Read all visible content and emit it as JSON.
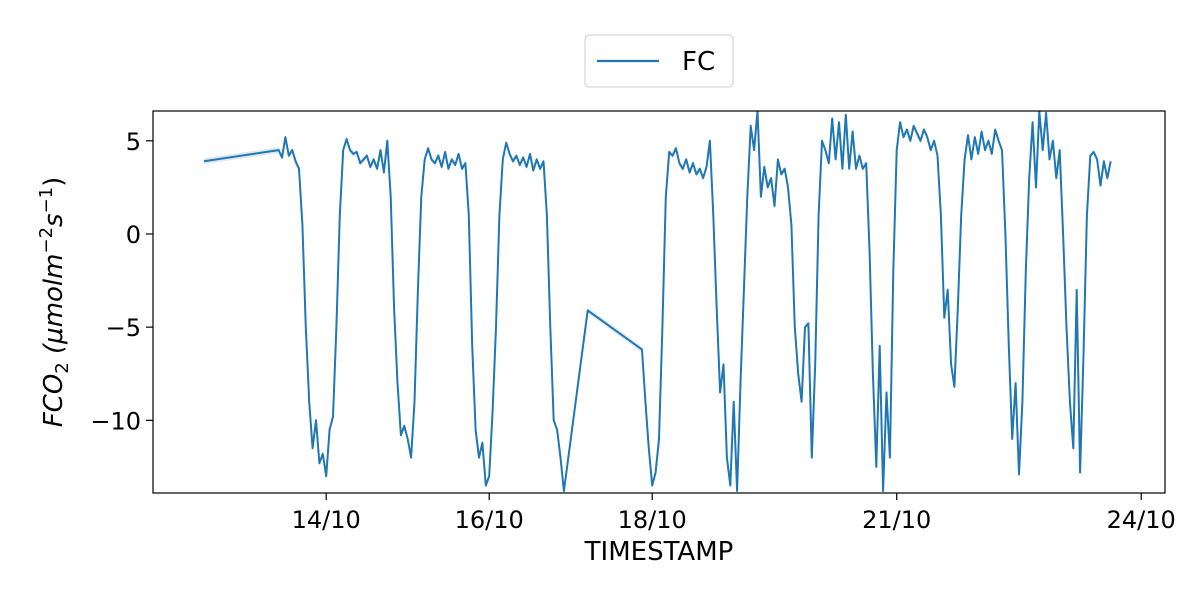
{
  "chart_data": {
    "type": "line",
    "xlabel": "TIMESTAMP",
    "ylabel": "FCO₂ (μmolm⁻²s⁻¹)",
    "ylim": [
      -13.9,
      6.6
    ],
    "xlim": [
      "2023-10-11T21:00",
      "2023-10-24T07:00"
    ],
    "y_ticks": [
      5,
      0,
      -5,
      -10
    ],
    "y_tick_labels": [
      "5",
      "0",
      "−5",
      "−10"
    ],
    "x_ticks": [
      "2023-10-14",
      "2023-10-16",
      "2023-10-18",
      "2023-10-21",
      "2023-10-24"
    ],
    "x_tick_labels": [
      "14/10",
      "16/10",
      "18/10",
      "21/10",
      "24/10"
    ],
    "grid": false,
    "legend": {
      "position": "top-center",
      "entries": [
        "FC"
      ]
    },
    "colors": {
      "series": "#1f77b4",
      "band": "#a7c1dd"
    },
    "series": [
      {
        "name": "FC",
        "points": [
          [
            "2023-10-12T12:00",
            3.9
          ],
          [
            "2023-10-13T10:00",
            4.5
          ],
          [
            "2023-10-13T11:00",
            4.1
          ],
          [
            "2023-10-13T12:00",
            5.2
          ],
          [
            "2023-10-13T13:00",
            4.2
          ],
          [
            "2023-10-13T14:00",
            4.5
          ],
          [
            "2023-10-13T15:00",
            3.9
          ],
          [
            "2023-10-13T16:00",
            3.5
          ],
          [
            "2023-10-13T17:00",
            0.5
          ],
          [
            "2023-10-13T18:00",
            -5.0
          ],
          [
            "2023-10-13T19:00",
            -9.0
          ],
          [
            "2023-10-13T20:00",
            -11.5
          ],
          [
            "2023-10-13T21:00",
            -10.0
          ],
          [
            "2023-10-13T22:00",
            -12.3
          ],
          [
            "2023-10-13T23:00",
            -11.8
          ],
          [
            "2023-10-14T00:00",
            -13.0
          ],
          [
            "2023-10-14T01:00",
            -10.5
          ],
          [
            "2023-10-14T02:00",
            -9.8
          ],
          [
            "2023-10-14T03:00",
            -5.0
          ],
          [
            "2023-10-14T04:00",
            1.0
          ],
          [
            "2023-10-14T05:00",
            4.5
          ],
          [
            "2023-10-14T06:00",
            5.1
          ],
          [
            "2023-10-14T07:00",
            4.5
          ],
          [
            "2023-10-14T08:00",
            4.3
          ],
          [
            "2023-10-14T09:00",
            4.4
          ],
          [
            "2023-10-14T10:00",
            3.8
          ],
          [
            "2023-10-14T12:00",
            4.2
          ],
          [
            "2023-10-14T13:00",
            3.6
          ],
          [
            "2023-10-14T14:00",
            4.0
          ],
          [
            "2023-10-14T15:00",
            3.5
          ],
          [
            "2023-10-14T16:00",
            4.5
          ],
          [
            "2023-10-14T17:00",
            3.3
          ],
          [
            "2023-10-14T18:00",
            5.0
          ],
          [
            "2023-10-14T19:00",
            2.0
          ],
          [
            "2023-10-14T20:00",
            -4.0
          ],
          [
            "2023-10-14T21:00",
            -8.0
          ],
          [
            "2023-10-14T22:00",
            -10.8
          ],
          [
            "2023-10-14T23:00",
            -10.3
          ],
          [
            "2023-10-15T00:00",
            -11.0
          ],
          [
            "2023-10-15T01:00",
            -12.0
          ],
          [
            "2023-10-15T02:00",
            -9.0
          ],
          [
            "2023-10-15T03:00",
            -3.0
          ],
          [
            "2023-10-15T04:00",
            2.0
          ],
          [
            "2023-10-15T05:00",
            4.0
          ],
          [
            "2023-10-15T06:00",
            4.6
          ],
          [
            "2023-10-15T07:00",
            4.0
          ],
          [
            "2023-10-15T08:00",
            3.8
          ],
          [
            "2023-10-15T09:00",
            4.2
          ],
          [
            "2023-10-15T10:00",
            3.6
          ],
          [
            "2023-10-15T11:00",
            4.4
          ],
          [
            "2023-10-15T12:00",
            3.5
          ],
          [
            "2023-10-15T13:00",
            4.0
          ],
          [
            "2023-10-15T14:00",
            3.7
          ],
          [
            "2023-10-15T15:00",
            4.3
          ],
          [
            "2023-10-15T16:00",
            3.5
          ],
          [
            "2023-10-15T17:00",
            3.8
          ],
          [
            "2023-10-15T18:00",
            1.0
          ],
          [
            "2023-10-15T19:00",
            -6.0
          ],
          [
            "2023-10-15T20:00",
            -10.5
          ],
          [
            "2023-10-15T21:00",
            -12.0
          ],
          [
            "2023-10-15T22:00",
            -11.2
          ],
          [
            "2023-10-15T23:00",
            -13.5
          ],
          [
            "2023-10-16T00:00",
            -13.0
          ],
          [
            "2023-10-16T01:00",
            -9.5
          ],
          [
            "2023-10-16T02:00",
            -5.0
          ],
          [
            "2023-10-16T03:00",
            1.0
          ],
          [
            "2023-10-16T04:00",
            4.0
          ],
          [
            "2023-10-16T05:00",
            4.9
          ],
          [
            "2023-10-16T06:00",
            4.3
          ],
          [
            "2023-10-16T07:00",
            3.9
          ],
          [
            "2023-10-16T08:00",
            4.2
          ],
          [
            "2023-10-16T09:00",
            3.7
          ],
          [
            "2023-10-16T10:00",
            4.1
          ],
          [
            "2023-10-16T11:00",
            3.6
          ],
          [
            "2023-10-16T12:00",
            4.3
          ],
          [
            "2023-10-16T13:00",
            3.4
          ],
          [
            "2023-10-16T14:00",
            4.0
          ],
          [
            "2023-10-16T15:00",
            3.5
          ],
          [
            "2023-10-16T16:00",
            3.9
          ],
          [
            "2023-10-16T17:00",
            1.0
          ],
          [
            "2023-10-16T18:00",
            -5.0
          ],
          [
            "2023-10-16T19:00",
            -10.0
          ],
          [
            "2023-10-16T20:00",
            -10.5
          ],
          [
            "2023-10-16T21:00",
            -12.0
          ],
          [
            "2023-10-16T22:00",
            -13.8
          ],
          [
            "2023-10-17T05:00",
            -4.1
          ],
          [
            "2023-10-17T21:00",
            -6.2
          ],
          [
            "2023-10-17T22:00",
            -9.0
          ],
          [
            "2023-10-17T23:00",
            -11.5
          ],
          [
            "2023-10-18T00:00",
            -13.5
          ],
          [
            "2023-10-18T01:00",
            -12.8
          ],
          [
            "2023-10-18T02:00",
            -11.0
          ],
          [
            "2023-10-18T03:00",
            -5.0
          ],
          [
            "2023-10-18T04:00",
            2.0
          ],
          [
            "2023-10-18T05:00",
            4.4
          ],
          [
            "2023-10-18T06:00",
            4.2
          ],
          [
            "2023-10-18T07:00",
            4.6
          ],
          [
            "2023-10-18T08:00",
            3.8
          ],
          [
            "2023-10-18T09:00",
            3.5
          ],
          [
            "2023-10-18T10:00",
            4.0
          ],
          [
            "2023-10-18T11:00",
            3.3
          ],
          [
            "2023-10-18T12:00",
            3.8
          ],
          [
            "2023-10-18T13:00",
            3.2
          ],
          [
            "2023-10-18T14:00",
            3.5
          ],
          [
            "2023-10-18T15:00",
            3.0
          ],
          [
            "2023-10-18T16:00",
            3.6
          ],
          [
            "2023-10-18T17:00",
            5.0
          ],
          [
            "2023-10-18T18:00",
            1.0
          ],
          [
            "2023-10-18T19:00",
            -4.0
          ],
          [
            "2023-10-18T20:00",
            -8.5
          ],
          [
            "2023-10-18T21:00",
            -7.0
          ],
          [
            "2023-10-18T22:00",
            -12.0
          ],
          [
            "2023-10-18T23:00",
            -13.5
          ],
          [
            "2023-10-19T00:00",
            -9.0
          ],
          [
            "2023-10-19T01:00",
            -13.8
          ],
          [
            "2023-10-19T02:00",
            -8.0
          ],
          [
            "2023-10-19T03:00",
            -3.0
          ],
          [
            "2023-10-19T04:00",
            2.0
          ],
          [
            "2023-10-19T05:00",
            5.8
          ],
          [
            "2023-10-19T06:00",
            4.5
          ],
          [
            "2023-10-19T07:00",
            6.6
          ],
          [
            "2023-10-19T08:00",
            2.0
          ],
          [
            "2023-10-19T09:00",
            3.6
          ],
          [
            "2023-10-19T10:00",
            2.5
          ],
          [
            "2023-10-19T11:00",
            3.0
          ],
          [
            "2023-10-19T12:00",
            1.5
          ],
          [
            "2023-10-19T13:00",
            4.0
          ],
          [
            "2023-10-19T14:00",
            3.2
          ],
          [
            "2023-10-19T15:00",
            3.5
          ],
          [
            "2023-10-19T16:00",
            2.5
          ],
          [
            "2023-10-19T17:00",
            0.5
          ],
          [
            "2023-10-19T18:00",
            -5.0
          ],
          [
            "2023-10-19T19:00",
            -7.5
          ],
          [
            "2023-10-19T20:00",
            -9.0
          ],
          [
            "2023-10-19T21:00",
            -5.0
          ],
          [
            "2023-10-19T22:00",
            -4.8
          ],
          [
            "2023-10-19T23:00",
            -12.0
          ],
          [
            "2023-10-20T00:00",
            -7.0
          ],
          [
            "2023-10-20T01:00",
            1.0
          ],
          [
            "2023-10-20T02:00",
            5.0
          ],
          [
            "2023-10-20T03:00",
            4.5
          ],
          [
            "2023-10-20T04:00",
            3.8
          ],
          [
            "2023-10-20T05:00",
            6.2
          ],
          [
            "2023-10-20T06:00",
            4.0
          ],
          [
            "2023-10-20T07:00",
            6.0
          ],
          [
            "2023-10-20T08:00",
            3.5
          ],
          [
            "2023-10-20T09:00",
            6.4
          ],
          [
            "2023-10-20T10:00",
            3.5
          ],
          [
            "2023-10-20T11:00",
            5.5
          ],
          [
            "2023-10-20T12:00",
            3.5
          ],
          [
            "2023-10-20T13:00",
            4.2
          ],
          [
            "2023-10-20T14:00",
            3.5
          ],
          [
            "2023-10-20T15:00",
            3.8
          ],
          [
            "2023-10-20T16:00",
            -1.0
          ],
          [
            "2023-10-20T17:00",
            -7.5
          ],
          [
            "2023-10-20T18:00",
            -12.5
          ],
          [
            "2023-10-20T19:00",
            -6.0
          ],
          [
            "2023-10-20T20:00",
            -13.8
          ],
          [
            "2023-10-20T21:00",
            -8.5
          ],
          [
            "2023-10-20T22:00",
            -12.0
          ],
          [
            "2023-10-20T23:00",
            -2.0
          ],
          [
            "2023-10-21T00:00",
            4.5
          ],
          [
            "2023-10-21T01:00",
            6.0
          ],
          [
            "2023-10-21T02:00",
            5.2
          ],
          [
            "2023-10-21T03:00",
            5.6
          ],
          [
            "2023-10-21T04:00",
            5.0
          ],
          [
            "2023-10-21T05:00",
            5.8
          ],
          [
            "2023-10-21T06:00",
            5.4
          ],
          [
            "2023-10-21T07:00",
            5.0
          ],
          [
            "2023-10-21T08:00",
            5.6
          ],
          [
            "2023-10-21T09:00",
            5.2
          ],
          [
            "2023-10-21T10:00",
            4.5
          ],
          [
            "2023-10-21T11:00",
            5.0
          ],
          [
            "2023-10-21T12:00",
            4.2
          ],
          [
            "2023-10-21T13:00",
            1.0
          ],
          [
            "2023-10-21T14:00",
            -4.5
          ],
          [
            "2023-10-21T15:00",
            -3.0
          ],
          [
            "2023-10-21T16:00",
            -7.0
          ],
          [
            "2023-10-21T17:00",
            -8.2
          ],
          [
            "2023-10-21T18:00",
            -4.0
          ],
          [
            "2023-10-21T19:00",
            1.0
          ],
          [
            "2023-10-21T20:00",
            4.0
          ],
          [
            "2023-10-21T21:00",
            5.3
          ],
          [
            "2023-10-21T22:00",
            4.0
          ],
          [
            "2023-10-21T23:00",
            5.2
          ],
          [
            "2023-10-22T00:00",
            4.3
          ],
          [
            "2023-10-22T01:00",
            5.5
          ],
          [
            "2023-10-22T02:00",
            4.5
          ],
          [
            "2023-10-22T03:00",
            5.0
          ],
          [
            "2023-10-22T04:00",
            4.3
          ],
          [
            "2023-10-22T05:00",
            5.6
          ],
          [
            "2023-10-22T06:00",
            5.0
          ],
          [
            "2023-10-22T07:00",
            4.5
          ],
          [
            "2023-10-22T08:00",
            0.0
          ],
          [
            "2023-10-22T09:00",
            -6.0
          ],
          [
            "2023-10-22T10:00",
            -11.0
          ],
          [
            "2023-10-22T11:00",
            -8.0
          ],
          [
            "2023-10-22T12:00",
            -12.9
          ],
          [
            "2023-10-22T13:00",
            -9.0
          ],
          [
            "2023-10-22T14:00",
            -2.0
          ],
          [
            "2023-10-22T15:00",
            3.0
          ],
          [
            "2023-10-22T16:00",
            6.0
          ],
          [
            "2023-10-22T17:00",
            2.5
          ],
          [
            "2023-10-22T18:00",
            6.6
          ],
          [
            "2023-10-22T19:00",
            4.5
          ],
          [
            "2023-10-22T20:00",
            6.5
          ],
          [
            "2023-10-22T21:00",
            4.0
          ],
          [
            "2023-10-22T22:00",
            5.0
          ],
          [
            "2023-10-22T23:00",
            3.0
          ],
          [
            "2023-10-23T00:00",
            4.5
          ],
          [
            "2023-10-23T01:00",
            0.0
          ],
          [
            "2023-10-23T02:00",
            -5.0
          ],
          [
            "2023-10-23T03:00",
            -9.0
          ],
          [
            "2023-10-23T04:00",
            -11.5
          ],
          [
            "2023-10-23T05:00",
            -3.0
          ],
          [
            "2023-10-23T06:00",
            -12.8
          ],
          [
            "2023-10-23T07:00",
            -6.5
          ],
          [
            "2023-10-23T08:00",
            1.0
          ],
          [
            "2023-10-23T09:00",
            4.2
          ],
          [
            "2023-10-23T10:00",
            4.4
          ],
          [
            "2023-10-23T11:00",
            4.0
          ],
          [
            "2023-10-23T12:00",
            2.6
          ],
          [
            "2023-10-23T13:00",
            3.9
          ],
          [
            "2023-10-23T14:00",
            3.0
          ],
          [
            "2023-10-23T15:00",
            3.9
          ]
        ]
      }
    ]
  },
  "legend": {
    "label": "FC"
  },
  "axes": {
    "xlabel": "TIMESTAMP",
    "ylabel_main": "FCO",
    "ylabel_sub": "2",
    "ylabel_rest": " (μmolm",
    "ylabel_sup1": "−2",
    "ylabel_s": "s",
    "ylabel_sup2": "−1",
    "ylabel_close": ")"
  }
}
